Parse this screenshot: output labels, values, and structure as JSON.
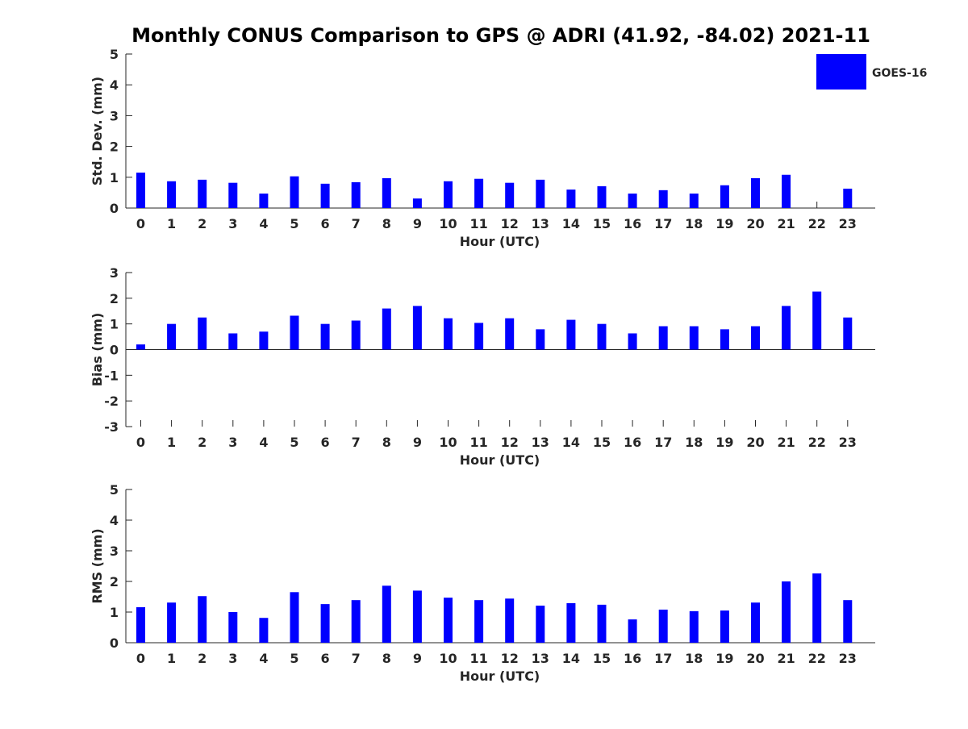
{
  "figure": {
    "title": "Monthly CONUS Comparison to GPS @ ADRI (41.92, -84.02) 2021-11",
    "legend_label": "GOES-16",
    "legend_color": "#0000ff",
    "bar_color": "#0000ff"
  },
  "chart_data": [
    {
      "type": "bar",
      "title": "Monthly CONUS Comparison to GPS @ ADRI (41.92, -84.02) 2021-11",
      "xlabel": "Hour (UTC)",
      "ylabel": "Std. Dev. (mm)",
      "categories": [
        "0",
        "1",
        "2",
        "3",
        "4",
        "5",
        "6",
        "7",
        "8",
        "9",
        "10",
        "11",
        "12",
        "13",
        "14",
        "15",
        "16",
        "17",
        "18",
        "19",
        "20",
        "21",
        "22",
        "23"
      ],
      "ylim": [
        0,
        5
      ],
      "yticks": [
        0,
        1,
        2,
        3,
        4,
        5
      ],
      "legend": "top-right",
      "grid": false,
      "series": [
        {
          "name": "GOES-16",
          "values": [
            1.15,
            0.87,
            0.92,
            0.82,
            0.47,
            1.03,
            0.79,
            0.84,
            0.97,
            0.31,
            0.87,
            0.95,
            0.82,
            0.92,
            0.6,
            0.71,
            0.47,
            0.58,
            0.47,
            0.74,
            0.97,
            1.08,
            0.0,
            0.63
          ]
        }
      ]
    },
    {
      "type": "bar",
      "xlabel": "Hour (UTC)",
      "ylabel": "Bias (mm)",
      "categories": [
        "0",
        "1",
        "2",
        "3",
        "4",
        "5",
        "6",
        "7",
        "8",
        "9",
        "10",
        "11",
        "12",
        "13",
        "14",
        "15",
        "16",
        "17",
        "18",
        "19",
        "20",
        "21",
        "22",
        "23"
      ],
      "ylim": [
        -3,
        3
      ],
      "yticks": [
        -3,
        -2,
        -1,
        0,
        1,
        2,
        3
      ],
      "grid": false,
      "series": [
        {
          "name": "GOES-16",
          "values": [
            0.2,
            1.0,
            1.25,
            0.63,
            0.7,
            1.32,
            1.0,
            1.13,
            1.6,
            1.7,
            1.22,
            1.04,
            1.22,
            0.79,
            1.16,
            1.0,
            0.63,
            0.91,
            0.91,
            0.79,
            0.91,
            1.7,
            2.26,
            1.25
          ]
        }
      ]
    },
    {
      "type": "bar",
      "xlabel": "Hour (UTC)",
      "ylabel": "RMS (mm)",
      "categories": [
        "0",
        "1",
        "2",
        "3",
        "4",
        "5",
        "6",
        "7",
        "8",
        "9",
        "10",
        "11",
        "12",
        "13",
        "14",
        "15",
        "16",
        "17",
        "18",
        "19",
        "20",
        "21",
        "22",
        "23"
      ],
      "ylim": [
        0,
        5
      ],
      "yticks": [
        0,
        1,
        2,
        3,
        4,
        5
      ],
      "grid": false,
      "series": [
        {
          "name": "GOES-16",
          "values": [
            1.16,
            1.31,
            1.52,
            1.0,
            0.81,
            1.65,
            1.26,
            1.39,
            1.86,
            1.7,
            1.47,
            1.39,
            1.44,
            1.21,
            1.29,
            1.24,
            0.76,
            1.08,
            1.03,
            1.05,
            1.31,
            2.0,
            2.26,
            1.39
          ]
        }
      ]
    }
  ]
}
